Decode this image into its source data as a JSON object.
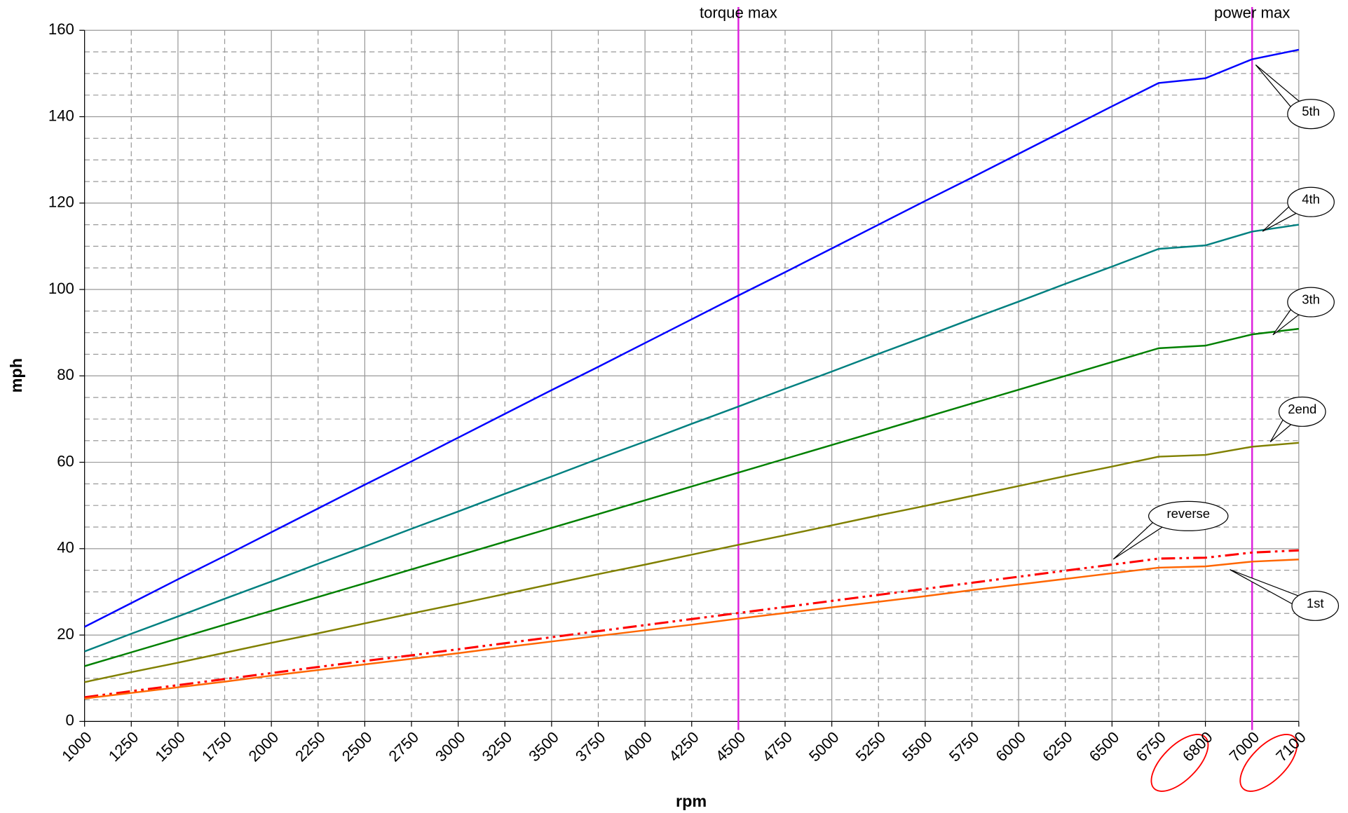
{
  "chart_data": {
    "type": "line",
    "x_label": "rpm",
    "y_label": "mph",
    "categories": [
      "1000",
      "1250",
      "1500",
      "1750",
      "2000",
      "2250",
      "2500",
      "2750",
      "3000",
      "3250",
      "3500",
      "3750",
      "4000",
      "4250",
      "4500",
      "4750",
      "5000",
      "5250",
      "5500",
      "5750",
      "6000",
      "6250",
      "6500",
      "6750",
      "6800",
      "7000",
      "7100"
    ],
    "ylim": [
      0,
      160
    ],
    "yticks": [
      0,
      20,
      40,
      60,
      80,
      100,
      120,
      140,
      160
    ],
    "grid": true,
    "minor_grid_step": 5,
    "markers": [
      {
        "label": "torque max",
        "x": 4500,
        "color": "#dd22dd"
      },
      {
        "label": "power max",
        "x": 7000,
        "color": "#dd22dd"
      }
    ],
    "series": [
      {
        "name": "5th",
        "color": "#0000ff",
        "values": [
          21.9,
          27.4,
          32.9,
          38.3,
          43.8,
          49.3,
          54.8,
          60.2,
          65.7,
          71.2,
          76.7,
          82.1,
          87.6,
          93.1,
          98.6,
          104.0,
          109.5,
          115.0,
          120.5,
          125.9,
          131.4,
          136.9,
          142.4,
          147.8,
          148.9,
          153.3,
          155.5
        ]
      },
      {
        "name": "4th",
        "color": "#008080",
        "values": [
          16.2,
          20.3,
          24.3,
          28.4,
          32.4,
          36.5,
          40.5,
          44.6,
          48.6,
          52.7,
          56.7,
          60.8,
          64.8,
          68.9,
          72.9,
          77.0,
          81.0,
          85.1,
          89.1,
          93.2,
          97.2,
          101.3,
          105.3,
          109.4,
          110.2,
          113.4,
          115.0
        ]
      },
      {
        "name": "3th",
        "color": "#008000",
        "values": [
          12.8,
          16.0,
          19.2,
          22.4,
          25.6,
          28.8,
          32.0,
          35.2,
          38.4,
          41.6,
          44.8,
          48.0,
          51.2,
          54.4,
          57.6,
          60.8,
          64.0,
          67.2,
          70.4,
          73.6,
          76.8,
          80.0,
          83.2,
          86.4,
          87.0,
          89.6,
          90.9
        ]
      },
      {
        "name": "2end",
        "color": "#808000",
        "values": [
          9.1,
          11.4,
          13.6,
          15.9,
          18.2,
          20.4,
          22.7,
          25.0,
          27.2,
          29.5,
          31.8,
          34.1,
          36.3,
          38.6,
          40.9,
          43.1,
          45.4,
          47.7,
          49.9,
          52.2,
          54.5,
          56.8,
          59.0,
          61.3,
          61.7,
          63.6,
          64.5
        ]
      },
      {
        "name": "reverse",
        "color": "#ff0000",
        "dash": "dash-dot-dot",
        "values": [
          5.6,
          7.0,
          8.4,
          9.8,
          11.2,
          12.6,
          14.0,
          15.3,
          16.7,
          18.1,
          19.5,
          20.9,
          22.3,
          23.7,
          25.1,
          26.5,
          27.9,
          29.3,
          30.7,
          32.1,
          33.5,
          34.9,
          36.3,
          37.7,
          37.9,
          39.1,
          39.6
        ]
      },
      {
        "name": "1st",
        "color": "#ff6600",
        "values": [
          5.3,
          6.6,
          7.9,
          9.2,
          10.6,
          11.9,
          13.2,
          14.5,
          15.8,
          17.2,
          18.5,
          19.8,
          21.1,
          22.4,
          23.8,
          25.1,
          26.4,
          27.7,
          29.0,
          30.4,
          31.7,
          33.0,
          34.3,
          35.6,
          35.9,
          37.0,
          37.5
        ]
      }
    ]
  }
}
